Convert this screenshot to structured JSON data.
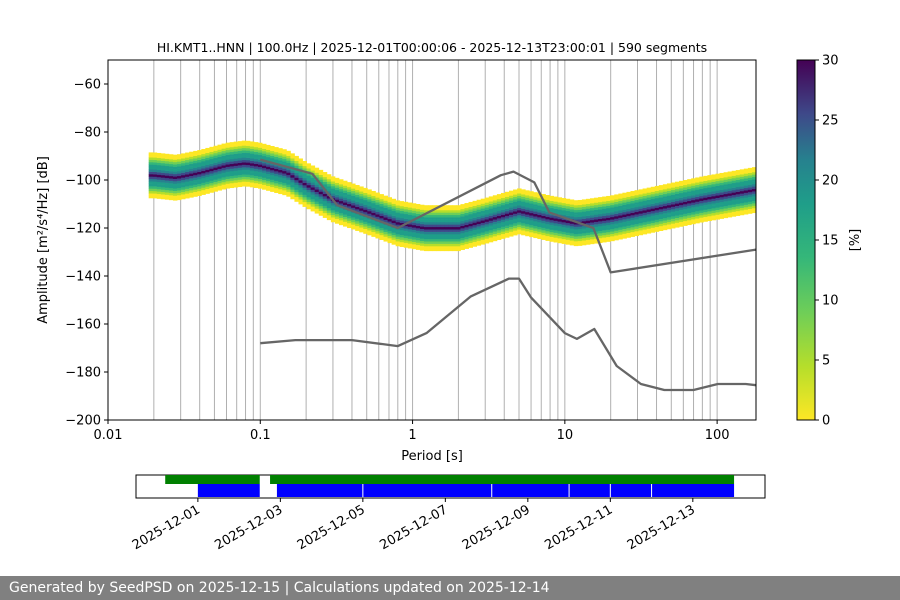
{
  "chart_data": [
    {
      "type": "heatmap",
      "title": "HI.KMT1..HNN | 100.0Hz | 2025-12-01T00:00:06 - 2025-12-13T23:00:01 | 590 segments",
      "xlabel": "Period [s]",
      "ylabel": "Amplitude [m²/s⁴/Hz] [dB]",
      "x_scale": "log",
      "xlim": [
        0.01,
        180
      ],
      "ylim": [
        -200,
        -50
      ],
      "x_ticks": [
        0.01,
        0.1,
        1,
        10,
        100
      ],
      "x_tick_labels": [
        "0.01",
        "0.1",
        "1",
        "10",
        "100"
      ],
      "y_ticks": [
        -200,
        -180,
        -160,
        -140,
        -120,
        -100,
        -80,
        -60
      ],
      "grid": "vertical lines at log period ticks",
      "colorbar": {
        "label": "[%]",
        "range": [
          0,
          30
        ],
        "ticks": [
          0,
          5,
          10,
          15,
          20,
          25,
          30
        ],
        "colormap": "viridis_r"
      },
      "mode_curve": {
        "x": [
          0.02,
          0.028,
          0.04,
          0.06,
          0.08,
          0.1,
          0.15,
          0.2,
          0.3,
          0.5,
          0.8,
          1.2,
          2,
          3,
          5,
          8,
          12,
          20,
          40,
          80,
          180
        ],
        "y": [
          -98,
          -99,
          -97,
          -94,
          -93,
          -94,
          -97,
          -102,
          -108,
          -113,
          -118,
          -120,
          -120,
          -117,
          -113,
          -116,
          -118,
          -116,
          -112,
          -108,
          -104
        ]
      },
      "noise_models": [
        {
          "name": "high",
          "x": [
            0.1,
            0.22,
            0.32,
            0.8,
            3.8,
            4.6,
            6.3,
            7.9,
            15.4,
            20,
            180
          ],
          "y": [
            -91.5,
            -97.4,
            -110.5,
            -120,
            -98,
            -96.5,
            -101,
            -113.5,
            -120,
            -138.5,
            -129
          ]
        },
        {
          "name": "low",
          "x": [
            0.1,
            0.17,
            0.4,
            0.8,
            1.24,
            2.4,
            4.3,
            5,
            6,
            10,
            12,
            15.6,
            21.9,
            31.6,
            45,
            70,
            101,
            154,
            180
          ],
          "y": [
            -168,
            -166.7,
            -166.7,
            -169.2,
            -163.7,
            -148.6,
            -141.1,
            -141.1,
            -149,
            -163.8,
            -166.2,
            -162.1,
            -177.5,
            -185,
            -187.5,
            -187.5,
            -185,
            -185,
            -185.5
          ]
        }
      ]
    },
    {
      "type": "timeline",
      "x_tick_labels": [
        "2025-12-01",
        "2025-12-03",
        "2025-12-05",
        "2025-12-07",
        "2025-12-09",
        "2025-12-11",
        "2025-12-13"
      ],
      "bars": [
        {
          "name": "data",
          "color": "#008000",
          "segments": [
            [
              "2025-11-30T05:00",
              "2025-12-02T12:00"
            ],
            [
              "2025-12-02T18:00",
              "2025-12-14T00:00"
            ]
          ]
        },
        {
          "name": "psd",
          "color": "#0000ff",
          "segments": [
            [
              "2025-12-01T00:00",
              "2025-12-02T12:00"
            ],
            [
              "2025-12-02T22:00",
              "2025-12-14T00:00"
            ]
          ]
        }
      ],
      "gaps_in_psd": [
        "2025-12-05T00:00",
        "2025-12-08T03:00",
        "2025-12-10T00:00",
        "2025-12-11T00:00",
        "2025-12-12T00:00"
      ]
    }
  ],
  "footer": {
    "text": "Generated by SeedPSD on 2025-12-15 | Calculations updated on 2025-12-14"
  },
  "colors": {
    "noise_model": "#666666",
    "grid": "#b0b0b0",
    "data_bar": "#008000",
    "psd_bar": "#0000ff",
    "footer_bg": "#808080"
  }
}
